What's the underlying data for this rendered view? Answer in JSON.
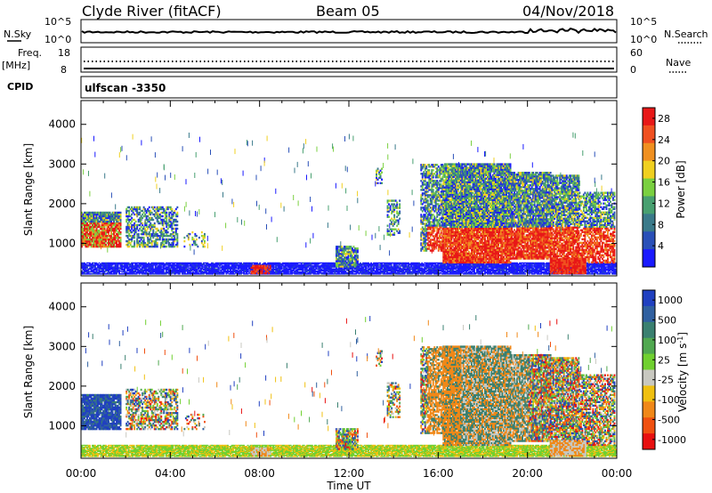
{
  "header": {
    "station": "Clyde River (fitACF)",
    "beam": "Beam 05",
    "date": "04/Nov/2018"
  },
  "top_panels": {
    "nsky_label": "N.Sky",
    "nsearch_label": "N.Search",
    "nsky_ticks": [
      "10^5",
      "10^0"
    ],
    "nsearch_ticks": [
      "10^5",
      "10^0"
    ],
    "freq_label": "Freq.",
    "freq_unit": "[MHz]",
    "freq_ticks": [
      "18",
      "8"
    ],
    "nave_label": "Nave",
    "nave_ticks": [
      "60",
      "0"
    ],
    "cpid_label": "CPID",
    "cpid_value": "ulfscan -3350"
  },
  "colors": {
    "power_scale": [
      "#1a1aff",
      "#2a50b8",
      "#3a7a8a",
      "#48a070",
      "#7ad040",
      "#f0d020",
      "#f09020",
      "#f05020",
      "#e81818"
    ],
    "velocity_scale": [
      "#2040c0",
      "#3060a0",
      "#3a8070",
      "#50a850",
      "#70d030",
      "#c8c8c0",
      "#f0c010",
      "#f08818",
      "#f05010",
      "#e81010"
    ],
    "ground_scatter": "#a0a0a0"
  },
  "chart_data": [
    {
      "type": "heatmap",
      "panel": "power",
      "ylabel": "Slant Range [km]",
      "xlabel": "Time UT",
      "x_ticks": [
        "00:00",
        "04:00",
        "08:00",
        "12:00",
        "16:00",
        "20:00",
        "00:00"
      ],
      "y_ticks": [
        "1000",
        "2000",
        "3000",
        "4000"
      ],
      "ylim": [
        180,
        4600
      ],
      "colorbar_label": "Power [dB]",
      "colorbar_ticks": [
        "4",
        "8",
        "12",
        "16",
        "20",
        "24",
        "28"
      ],
      "colorbar_range": [
        0,
        30
      ]
    },
    {
      "type": "heatmap",
      "panel": "velocity",
      "ylabel": "Slant Range [km]",
      "xlabel": "Time UT",
      "x_ticks": [
        "00:00",
        "04:00",
        "08:00",
        "12:00",
        "16:00",
        "20:00",
        "00:00"
      ],
      "y_ticks": [
        "1000",
        "2000",
        "3000",
        "4000"
      ],
      "ylim": [
        180,
        4600
      ],
      "colorbar_label": "Velocity [m s^-1]",
      "colorbar_ticks": [
        "1000",
        "500",
        "100",
        "25",
        "-25",
        "-100",
        "-500",
        "-1000"
      ]
    }
  ]
}
